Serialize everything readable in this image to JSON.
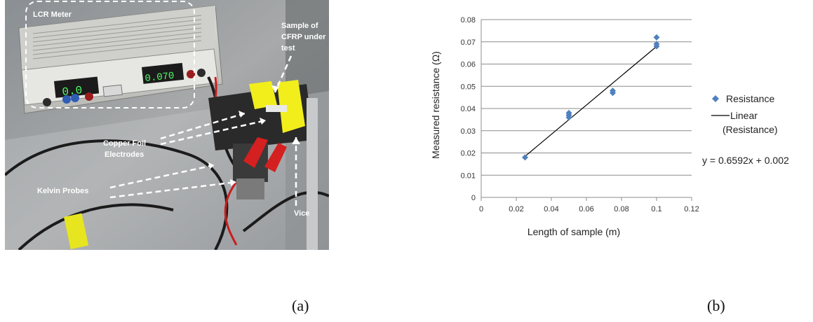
{
  "photo": {
    "labels": {
      "lcr_meter": "LCR Meter",
      "sample_line1": "Sample of",
      "sample_line2": "CFRP under",
      "sample_line3": "test",
      "copper_line1": "Copper Foil",
      "copper_line2": "Electrodes",
      "kelvin": "Kelvin Probes",
      "vice": "Vice",
      "display_left": "0.0",
      "display_right": "0.070"
    }
  },
  "captions": {
    "a": "(a)",
    "b": "(b)"
  },
  "chart_data": {
    "type": "scatter",
    "xlabel": "Length of sample (m)",
    "ylabel": "Measured resistance (Ω)",
    "xlim": [
      0,
      0.12
    ],
    "ylim": [
      0,
      0.08
    ],
    "xticks": [
      "0",
      "0.02",
      "0.04",
      "0.06",
      "0.08",
      "0.1",
      "0.12"
    ],
    "yticks": [
      "0",
      "0.01",
      "0.02",
      "0.03",
      "0.04",
      "0.05",
      "0.06",
      "0.07",
      "0.08"
    ],
    "grid": "horizontal",
    "legend_position": "right",
    "series": [
      {
        "name": "Resistance",
        "color": "#4f81bd",
        "marker": "diamond",
        "points": [
          [
            0.025,
            0.018
          ],
          [
            0.05,
            0.036
          ],
          [
            0.05,
            0.037
          ],
          [
            0.05,
            0.038
          ],
          [
            0.075,
            0.047
          ],
          [
            0.075,
            0.048
          ],
          [
            0.1,
            0.068
          ],
          [
            0.1,
            0.069
          ],
          [
            0.1,
            0.072
          ]
        ]
      }
    ],
    "trendline": {
      "legend_line1": "Linear",
      "legend_line2": "(Resistance)",
      "color": "#000000",
      "slope": 0.6592,
      "intercept": 0.002,
      "x_range": [
        0.025,
        0.1
      ],
      "equation": "y = 0.6592x + 0.002"
    }
  }
}
